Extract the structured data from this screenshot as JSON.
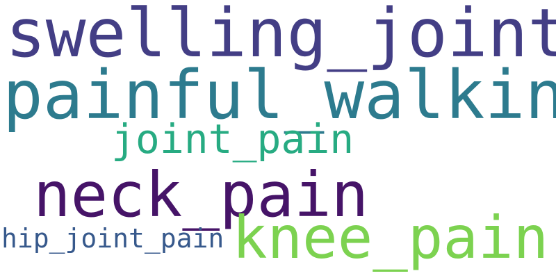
{
  "words": [
    {
      "text": "swelling_joints",
      "color": "#433e85"
    },
    {
      "text": "painful_walking",
      "color": "#2d7b8e"
    },
    {
      "text": "joint_pain",
      "color": "#27ab82"
    },
    {
      "text": "neck_pain",
      "color": "#461468"
    },
    {
      "text": "hip_joint_pain",
      "color": "#37598c"
    },
    {
      "text": "knee_pain",
      "color": "#7cd250"
    }
  ]
}
